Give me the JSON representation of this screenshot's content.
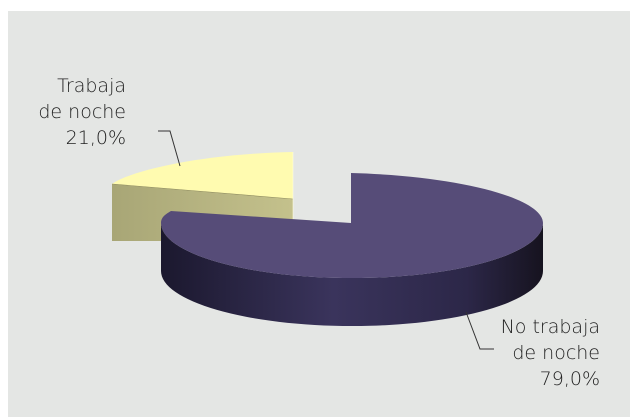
{
  "chart_data": {
    "type": "pie",
    "style": "3d-exploded",
    "slices": [
      {
        "label_lines": [
          "Trabaja",
          "de noche",
          "21,0%"
        ],
        "value": 21.0,
        "color": "#fffbb0",
        "side_color": "#b8b682"
      },
      {
        "label_lines": [
          "No trabaja",
          "de noche",
          "79,0%"
        ],
        "value": 79.0,
        "color": "#564c78",
        "side_color": "#2a2545"
      }
    ],
    "colors": {
      "panel_background": "#e4e6e4",
      "leader_line": "#333333"
    }
  }
}
